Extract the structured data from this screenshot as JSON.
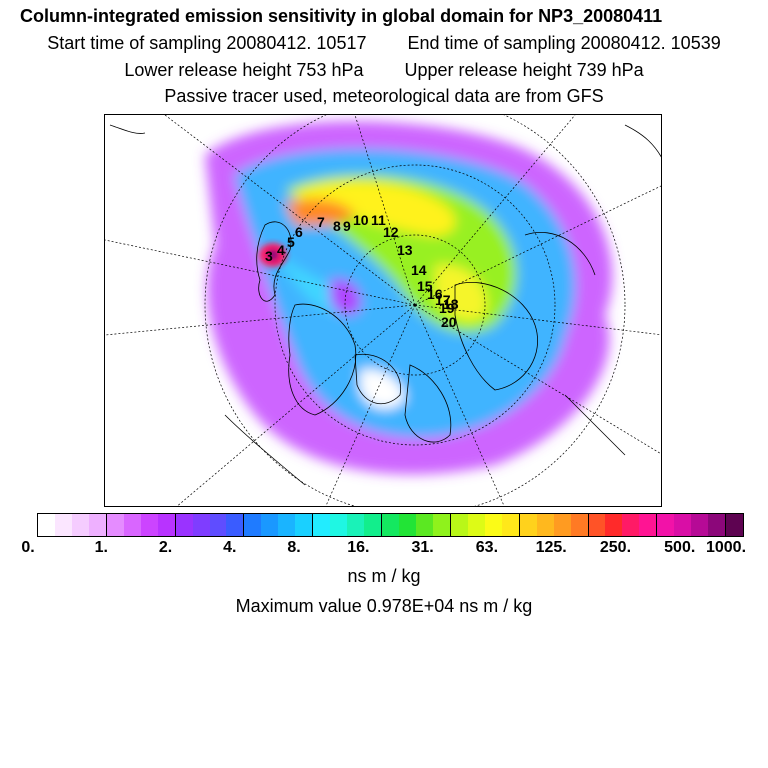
{
  "header": {
    "title": "Column-integrated emission sensitivity in global domain for NP3_20080411",
    "start_label": "Start time of sampling 20080412. 10517",
    "end_label": "End time of sampling 20080412. 10539",
    "lower_label": "Lower release height  753 hPa",
    "upper_label": "Upper release height  739 hPa",
    "tracer_label": "Passive tracer used, meteorological data are from GFS"
  },
  "map": {
    "trajectory_labels": [
      "3",
      "4",
      "5",
      "6",
      "7",
      "8",
      "9",
      "10",
      "11",
      "12",
      "13",
      "14",
      "15",
      "16",
      "17",
      "18",
      "19",
      "20"
    ]
  },
  "colorbar": {
    "ticks": [
      "0.",
      "1.",
      "2.",
      "4.",
      "8.",
      "16.",
      "31.",
      "63.",
      "125.",
      "250.",
      "500.",
      "1000."
    ],
    "unit": "ns m / kg",
    "colors": [
      "#ffffff",
      "#fbe6ff",
      "#f5ccff",
      "#eeb0ff",
      "#e58cff",
      "#d966ff",
      "#cc44ff",
      "#b833ff",
      "#9a33ff",
      "#7f3dff",
      "#5f4dff",
      "#3a5cff",
      "#1f7bff",
      "#1a98ff",
      "#1ab4ff",
      "#1ad0ff",
      "#22ecff",
      "#1ff7e3",
      "#1af2b8",
      "#12ee8c",
      "#14e860",
      "#22e436",
      "#5be822",
      "#8ff21c",
      "#b9f718",
      "#ddfb16",
      "#fbfb17",
      "#ffe81a",
      "#ffd21c",
      "#ffb81e",
      "#ff9b21",
      "#ff7a24",
      "#ff5327",
      "#ff2a2a",
      "#ff1a66",
      "#ff1493",
      "#f212a8",
      "#d90ea6",
      "#b60a96",
      "#8c077a",
      "#5e0351"
    ]
  },
  "max_label": "Maximum value  0.978E+04 ns m / kg"
}
